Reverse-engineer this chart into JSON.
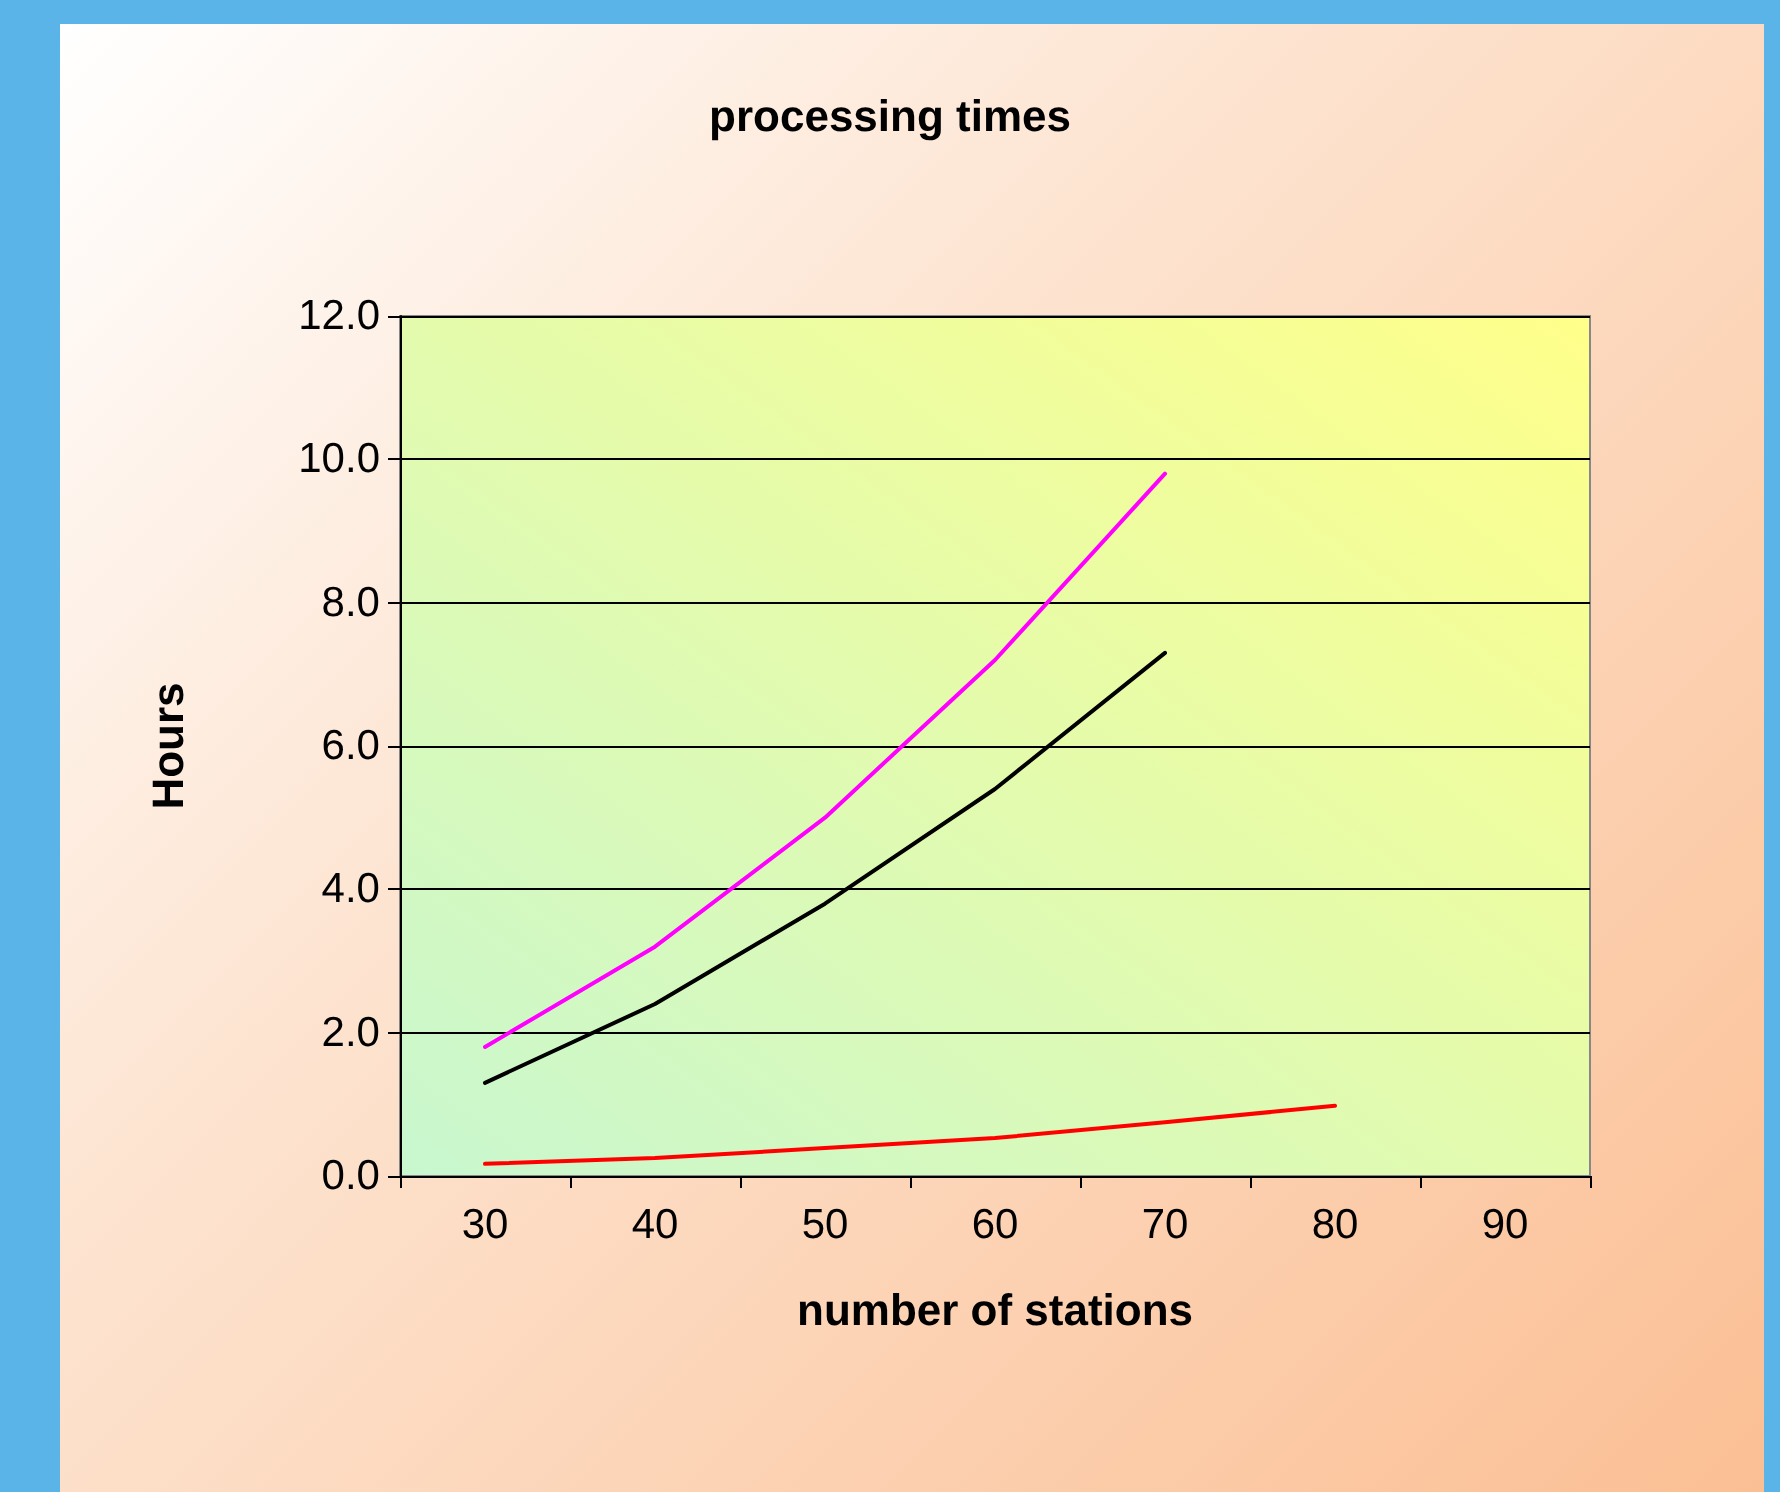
{
  "chart_data": {
    "type": "line",
    "title": "processing times",
    "xlabel": "number of stations",
    "ylabel": "Hours",
    "categories": [
      "30",
      "40",
      "50",
      "60",
      "70",
      "80",
      "90"
    ],
    "series": [
      {
        "color": "#ff00ff",
        "values": [
          1.8,
          3.2,
          5.0,
          7.2,
          9.8,
          null,
          null
        ]
      },
      {
        "color": "#000000",
        "values": [
          1.3,
          2.4,
          3.8,
          5.4,
          7.3,
          null,
          null
        ]
      },
      {
        "color": "#ff0000",
        "values": [
          0.17,
          0.25,
          0.39,
          0.53,
          0.75,
          0.98,
          null
        ]
      }
    ],
    "ylim": [
      0,
      12
    ],
    "yticks": [
      {
        "value": 0,
        "label": "0.0"
      },
      {
        "value": 2,
        "label": "2.0"
      },
      {
        "value": 4,
        "label": "4.0"
      },
      {
        "value": 6,
        "label": "6.0"
      },
      {
        "value": 8,
        "label": "8.0"
      },
      {
        "value": 10,
        "label": "10.0"
      },
      {
        "value": 12,
        "label": "12.0"
      }
    ],
    "grid": "y",
    "marker": "none",
    "line_style": "solid"
  }
}
